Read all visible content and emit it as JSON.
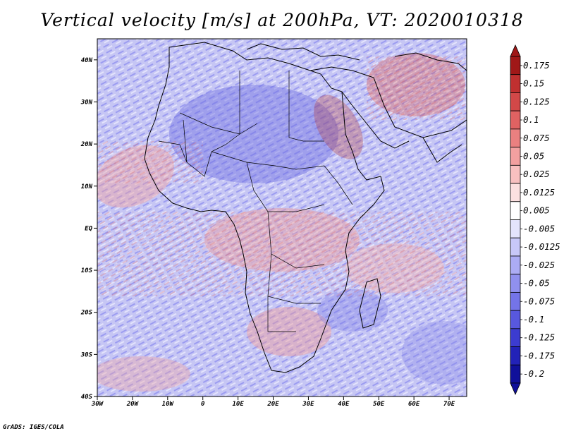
{
  "title": "Vertical velocity [m/s] at 200hPa, VT: 2020010318",
  "credit": "GrADS: IGES/COLA",
  "map": {
    "lat_labels": [
      "40N",
      "30N",
      "20N",
      "10N",
      "EQ",
      "10S",
      "20S",
      "30S",
      "40S"
    ],
    "lon_labels": [
      "30W",
      "20W",
      "10W",
      "0",
      "10E",
      "20E",
      "30E",
      "40E",
      "50E",
      "60E",
      "70E"
    ],
    "lon_range": [
      -30,
      75
    ],
    "lat_range": [
      -40,
      45
    ]
  },
  "colorbar": {
    "labels": [
      "0.175",
      "0.15",
      "0.125",
      "0.1",
      "0.075",
      "0.05",
      "0.025",
      "0.0125",
      "0.005",
      "-0.005",
      "-0.0125",
      "-0.025",
      "-0.05",
      "-0.075",
      "-0.1",
      "-0.125",
      "-0.175",
      "-0.2"
    ],
    "colors": [
      "#a01818",
      "#c03030",
      "#d24848",
      "#e06262",
      "#ea8080",
      "#f2a0a0",
      "#f8c0c0",
      "#fce0e0",
      "#ffffff",
      "#e4e4fc",
      "#c8c8f8",
      "#acacf4",
      "#9090ee",
      "#7474e8",
      "#5858de",
      "#3c3cd0",
      "#2222b8",
      "#10109a"
    ]
  }
}
